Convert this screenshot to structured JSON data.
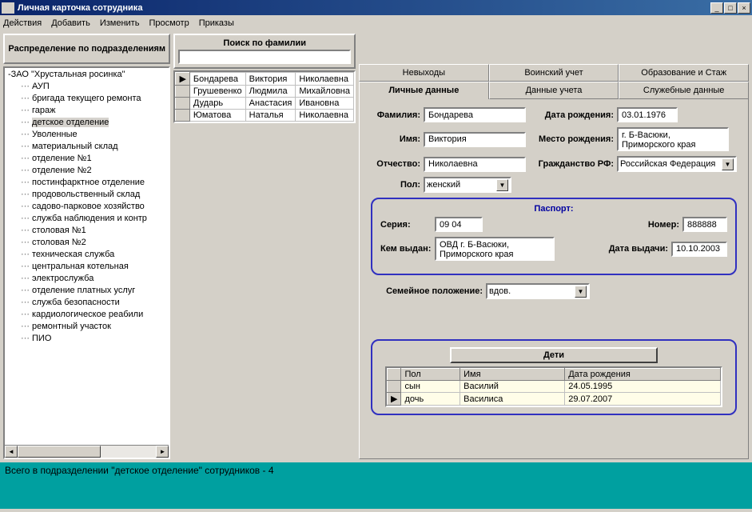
{
  "window": {
    "title": "Личная карточка сотрудника"
  },
  "menu": {
    "items": [
      "Действия",
      "Добавить",
      "Изменить",
      "Просмотр",
      "Приказы"
    ]
  },
  "left": {
    "header": "Распределение по подразделениям",
    "root": "-ЗАО \"Хрустальная росинка\"",
    "items": [
      "АУП",
      "бригада текущего ремонта",
      "гараж",
      "детское отделение",
      "Уволенные",
      "материальный склад",
      "отделение №1",
      "отделение №2",
      "постинфарктное отделение",
      "продовольственный склад",
      "садово-парковое хозяйство",
      "служба наблюдения и контр",
      "столовая №1",
      "столовая №2",
      "техническая служба",
      "центральная котельная",
      "электрослужба",
      "отделение платных услуг",
      "служба безопасности",
      "кардиологическое реабили",
      "ремонтный участок",
      "ПИО"
    ],
    "selected_index": 3
  },
  "search": {
    "title": "Поиск по фамилии",
    "value": "",
    "rows": [
      [
        "Бондарева",
        "Виктория",
        "Николаевна"
      ],
      [
        "Грушевенко",
        "Людмила",
        "Михайловна"
      ],
      [
        "Дударь",
        "Анастасия",
        "Ивановна"
      ],
      [
        "Юматова",
        "Наталья",
        "Николаевна"
      ]
    ],
    "selected_row": 0
  },
  "tabs": {
    "back": [
      "Невыходы",
      "Воинский учет",
      "Образование и Стаж"
    ],
    "front": [
      "Личные данные",
      "Данные учета",
      "Служебные данные"
    ],
    "active_front": 0
  },
  "form": {
    "labels": {
      "surname": "Фамилия:",
      "name": "Имя:",
      "patronymic": "Отчество:",
      "sex": "Пол:",
      "dob": "Дата рождения:",
      "pob": "Место рождения:",
      "citizenship": "Гражданство РФ:",
      "marital": "Семейное положение:"
    },
    "surname": "Бондарева",
    "name": "Виктория",
    "patronymic": "Николаевна",
    "sex": "женский",
    "dob": "03.01.1976",
    "pob": "г. Б-Васюки, Приморского края",
    "citizenship": "Российская Федерация",
    "marital": "вдов."
  },
  "passport": {
    "title": "Паспорт:",
    "labels": {
      "series": "Серия:",
      "number": "Номер:",
      "issued_by": "Кем выдан:",
      "issue_date": "Дата выдачи:"
    },
    "series": "09 04",
    "number": "888888",
    "issued_by": "ОВД г. Б-Васюки, Приморского края",
    "issue_date": "10.10.2003"
  },
  "children": {
    "button": "Дети",
    "columns": [
      "Пол",
      "Имя",
      "Дата рождения"
    ],
    "rows": [
      [
        "сын",
        "Василий",
        "24.05.1995"
      ],
      [
        "дочь",
        "Василиса",
        "29.07.2007"
      ]
    ],
    "selected_row": 1
  },
  "status": "Всего в подразделении \"детское отделение\" сотрудников - 4"
}
